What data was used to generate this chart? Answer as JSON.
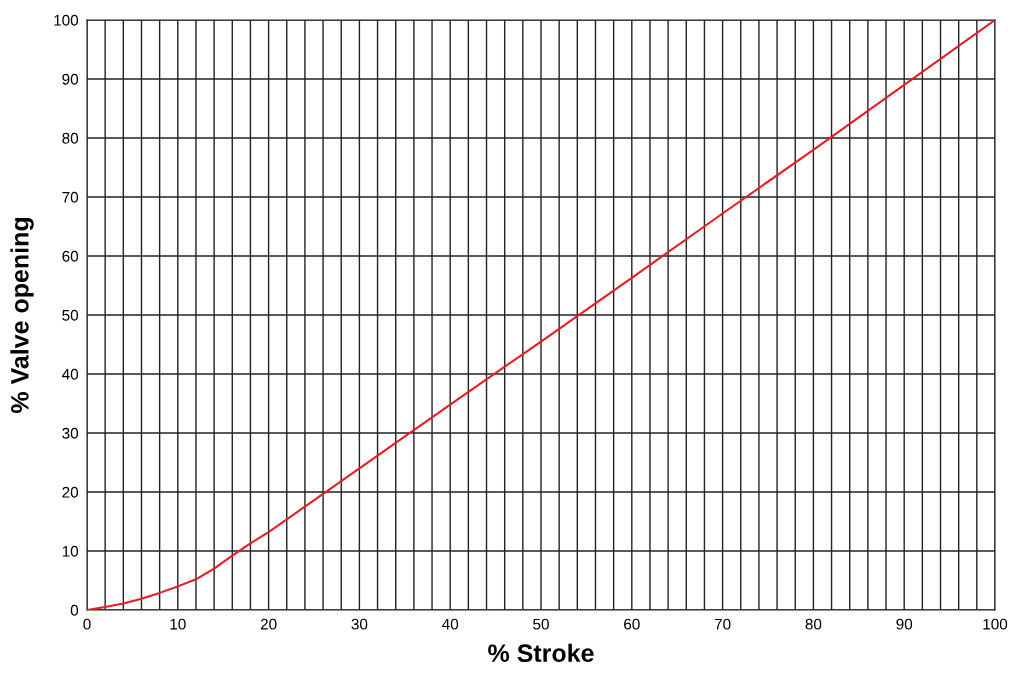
{
  "chart_data": {
    "type": "line",
    "xlabel": "% Stroke",
    "ylabel": "% Valve opening",
    "x": [
      0,
      2,
      4,
      6,
      8,
      10,
      12,
      14,
      16,
      18,
      20,
      30,
      40,
      50,
      60,
      70,
      80,
      90,
      100
    ],
    "series": [
      {
        "color": "#e31e24",
        "values": [
          0,
          0.5,
          1.1,
          1.9,
          2.9,
          4.0,
          5.2,
          7.0,
          9.2,
          11.3,
          13.2,
          24,
          34.8,
          45.5,
          56.3,
          67.2,
          78,
          89,
          100
        ]
      }
    ],
    "xlim": [
      0,
      100
    ],
    "ylim": [
      0,
      100
    ],
    "xticks": [
      0,
      {
        "value": 2,
        "label": null
      },
      {
        "value": 4,
        "label": null
      },
      {
        "value": 6,
        "label": null
      },
      {
        "value": 8,
        "label": null
      },
      10,
      {
        "value": 12,
        "label": null
      },
      {
        "value": 14,
        "label": null
      },
      {
        "value": 16,
        "label": null
      },
      {
        "value": 18,
        "label": null
      },
      20,
      {
        "value": 22,
        "label": null
      },
      {
        "value": 24,
        "label": null
      },
      {
        "value": 26,
        "label": null
      },
      {
        "value": 28,
        "label": null
      },
      30,
      {
        "value": 32,
        "label": null
      },
      {
        "value": 34,
        "label": null
      },
      {
        "value": 36,
        "label": null
      },
      {
        "value": 38,
        "label": null
      },
      40,
      {
        "value": 42,
        "label": null
      },
      {
        "value": 44,
        "label": null
      },
      {
        "value": 46,
        "label": null
      },
      {
        "value": 48,
        "label": null
      },
      50,
      {
        "value": 52,
        "label": null
      },
      {
        "value": 54,
        "label": null
      },
      {
        "value": 56,
        "label": null
      },
      {
        "value": 58,
        "label": null
      },
      60,
      {
        "value": 62,
        "label": null
      },
      {
        "value": 64,
        "label": null
      },
      {
        "value": 66,
        "label": null
      },
      {
        "value": 68,
        "label": null
      },
      70,
      {
        "value": 72,
        "label": null
      },
      {
        "value": 74,
        "label": null
      },
      {
        "value": 76,
        "label": null
      },
      {
        "value": 78,
        "label": null
      },
      80,
      {
        "value": 82,
        "label": null
      },
      {
        "value": 84,
        "label": null
      },
      {
        "value": 86,
        "label": null
      },
      {
        "value": 88,
        "label": null
      },
      90,
      {
        "value": 92,
        "label": null
      },
      {
        "value": 94,
        "label": null
      },
      {
        "value": 96,
        "label": null
      },
      {
        "value": 98,
        "label": null
      },
      100
    ],
    "yticks": [
      0,
      10,
      20,
      30,
      40,
      50,
      60,
      70,
      80,
      90,
      100
    ],
    "grid": true,
    "marker": "none",
    "line_style": "solid"
  }
}
